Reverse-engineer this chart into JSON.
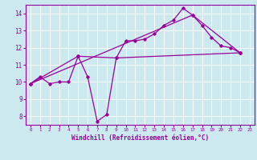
{
  "bg_color": "#cce9f0",
  "line_color": "#990099",
  "grid_color": "#ffffff",
  "xlabel": "Windchill (Refroidissement éolien,°C)",
  "xlim": [
    -0.5,
    23.5
  ],
  "ylim": [
    7.5,
    14.5
  ],
  "yticks": [
    8,
    9,
    10,
    11,
    12,
    13,
    14
  ],
  "xticks": [
    0,
    1,
    2,
    3,
    4,
    5,
    6,
    7,
    8,
    9,
    10,
    11,
    12,
    13,
    14,
    15,
    16,
    17,
    18,
    19,
    20,
    21,
    22,
    23
  ],
  "line1_x": [
    0,
    1,
    2,
    3,
    4,
    5,
    6,
    7,
    8,
    9,
    10,
    11,
    12,
    13,
    14,
    15,
    16,
    17,
    18,
    19,
    20,
    21,
    22
  ],
  "line1_y": [
    9.9,
    10.3,
    9.9,
    10.0,
    10.0,
    11.5,
    10.3,
    7.7,
    8.1,
    11.4,
    12.4,
    12.4,
    12.5,
    12.8,
    13.3,
    13.6,
    14.3,
    13.9,
    13.3,
    12.6,
    12.1,
    12.0,
    11.7
  ],
  "line2_x": [
    0,
    5,
    9,
    22
  ],
  "line2_y": [
    9.9,
    11.5,
    11.4,
    11.7
  ],
  "line3_x": [
    0,
    17,
    22
  ],
  "line3_y": [
    9.9,
    13.9,
    11.7
  ]
}
